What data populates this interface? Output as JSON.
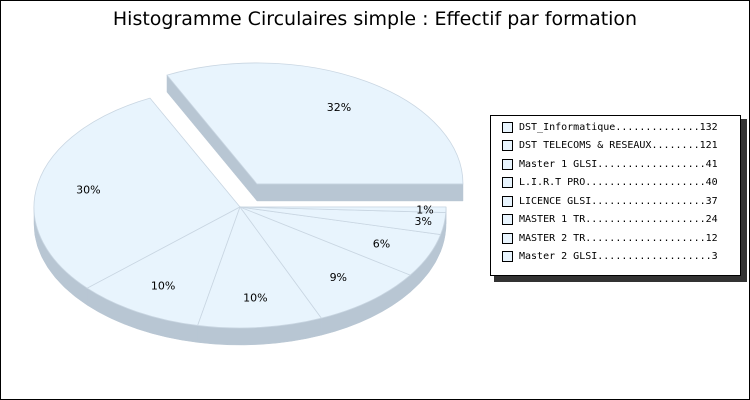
{
  "chart_data": {
    "type": "pie",
    "title": "Histogramme Circulaires simple : Effectif par formation",
    "slices": [
      {
        "name": "DST_Informatique",
        "value": 132,
        "label": "32%"
      },
      {
        "name": "DST TELECOMS & RESEAUX",
        "value": 121,
        "label": "30%"
      },
      {
        "name": "Master 1 GLSI",
        "value": 41,
        "label": "10%"
      },
      {
        "name": "L.I.R.T PRO",
        "value": 40,
        "label": "10%"
      },
      {
        "name": "LICENCE GLSI",
        "value": 37,
        "label": "9%"
      },
      {
        "name": "MASTER 1 TR",
        "value": 24,
        "label": "6%"
      },
      {
        "name": "MASTER 2 TR",
        "value": 12,
        "label": "3%"
      },
      {
        "name": "Master 2 GLSI",
        "value": 3,
        "label": "1%"
      }
    ],
    "exploded": "DST_Informatique",
    "legend_position": "right",
    "colors": {
      "slice_fill": "#e8f4fd",
      "slice_side": "#b8c6d3",
      "slice_stroke": "#c9d6e2"
    }
  }
}
